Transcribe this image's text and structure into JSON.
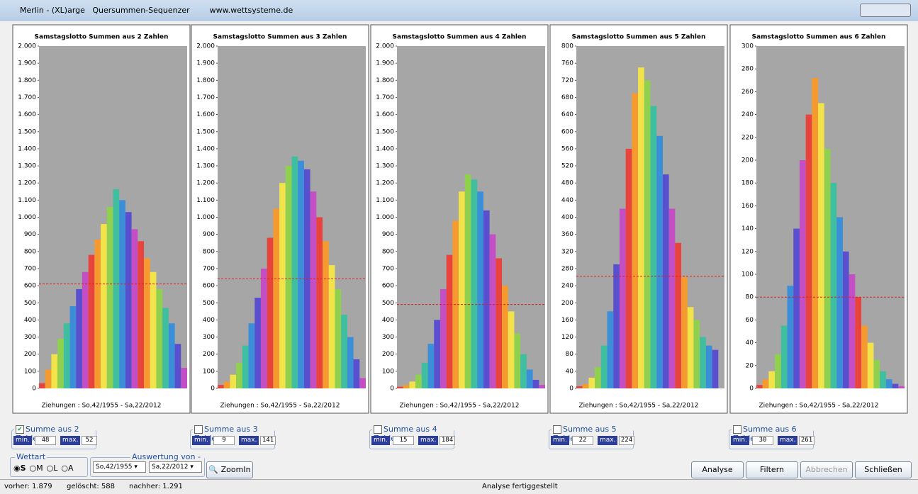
{
  "window": {
    "title": "Merlin - (XL)arge   Quersummen-Sequenzer        www.wettsysteme.de"
  },
  "chart_data": [
    {
      "type": "bar",
      "title": "Samstagslotto Summen aus 2 Zahlen",
      "footer": "Ziehungen : So,42/1955 - Sa,22/2012",
      "values": [
        30,
        110,
        200,
        290,
        380,
        480,
        580,
        680,
        780,
        870,
        960,
        1060,
        1164,
        1100,
        1030,
        930,
        860,
        760,
        680,
        580,
        470,
        380,
        260,
        120
      ],
      "ylim": [
        0,
        2000
      ],
      "yticks": [
        0,
        100,
        200,
        300,
        400,
        500,
        600,
        700,
        800,
        900,
        {
          "value": 1000,
          "label": "1.000"
        },
        {
          "value": 1100,
          "label": "1.100"
        },
        {
          "value": 1200,
          "label": "1.200"
        },
        {
          "value": 1300,
          "label": "1.300"
        },
        {
          "value": 1400,
          "label": "1.400"
        },
        {
          "value": 1500,
          "label": "1.500"
        },
        {
          "value": 1600,
          "label": "1.600"
        },
        {
          "value": 1700,
          "label": "1.700"
        },
        {
          "value": 1800,
          "label": "1.800"
        },
        {
          "value": 1900,
          "label": "1.900"
        },
        {
          "value": 2000,
          "label": "2.000"
        }
      ],
      "reference_line": 610
    },
    {
      "type": "bar",
      "title": "Samstagslotto Summen aus 3 Zahlen",
      "footer": "Ziehungen : So,42/1955 - Sa,22/2012",
      "values": [
        20,
        40,
        80,
        150,
        250,
        380,
        530,
        700,
        880,
        1050,
        1200,
        1300,
        1355,
        1330,
        1280,
        1150,
        1000,
        860,
        720,
        580,
        430,
        300,
        170,
        60
      ],
      "ylim": [
        0,
        2000
      ],
      "yticks": [
        0,
        100,
        200,
        300,
        400,
        500,
        600,
        700,
        800,
        900,
        {
          "value": 1000,
          "label": "1.000"
        },
        {
          "value": 1100,
          "label": "1.100"
        },
        {
          "value": 1200,
          "label": "1.200"
        },
        {
          "value": 1300,
          "label": "1.300"
        },
        {
          "value": 1400,
          "label": "1.400"
        },
        {
          "value": 1500,
          "label": "1.500"
        },
        {
          "value": 1600,
          "label": "1.600"
        },
        {
          "value": 1700,
          "label": "1.700"
        },
        {
          "value": 1800,
          "label": "1.800"
        },
        {
          "value": 1900,
          "label": "1.900"
        },
        {
          "value": 2000,
          "label": "2.000"
        }
      ],
      "reference_line": 640
    },
    {
      "type": "bar",
      "title": "Samstagslotto Summen aus 4 Zahlen",
      "footer": "Ziehungen : So,42/1955 - Sa,22/2012",
      "values": [
        10,
        20,
        40,
        80,
        150,
        260,
        400,
        580,
        780,
        980,
        1150,
        1251,
        1220,
        1150,
        1040,
        900,
        760,
        600,
        450,
        320,
        200,
        110,
        50,
        20
      ],
      "ylim": [
        0,
        2000
      ],
      "yticks": [
        0,
        100,
        200,
        300,
        400,
        500,
        600,
        700,
        800,
        900,
        {
          "value": 1000,
          "label": "1.000"
        },
        {
          "value": 1100,
          "label": "1.100"
        },
        {
          "value": 1200,
          "label": "1.200"
        },
        {
          "value": 1300,
          "label": "1.300"
        },
        {
          "value": 1400,
          "label": "1.400"
        },
        {
          "value": 1500,
          "label": "1.500"
        },
        {
          "value": 1600,
          "label": "1.600"
        },
        {
          "value": 1700,
          "label": "1.700"
        },
        {
          "value": 1800,
          "label": "1.800"
        },
        {
          "value": 1900,
          "label": "1.900"
        },
        {
          "value": 2000,
          "label": "2.000"
        }
      ],
      "reference_line": 490
    },
    {
      "type": "bar",
      "title": "Samstagslotto Summen aus 5 Zahlen",
      "footer": "Ziehungen : So,42/1955 - Sa,22/2012",
      "values": [
        5,
        10,
        25,
        50,
        100,
        180,
        290,
        420,
        560,
        690,
        750,
        720,
        660,
        590,
        500,
        420,
        340,
        260,
        190,
        160,
        120,
        100,
        90,
        0
      ],
      "ylim": [
        0,
        800
      ],
      "yticks": [
        0,
        40,
        80,
        120,
        160,
        200,
        240,
        280,
        320,
        360,
        400,
        440,
        480,
        520,
        560,
        600,
        640,
        680,
        720,
        760,
        800
      ],
      "reference_line": 262
    },
    {
      "type": "bar",
      "title": "Samstagslotto Summen aus 6 Zahlen",
      "footer": "Ziehungen : So,42/1955 - Sa,22/2012",
      "values": [
        3,
        8,
        15,
        30,
        55,
        90,
        140,
        200,
        240,
        272,
        250,
        210,
        180,
        150,
        120,
        100,
        80,
        55,
        40,
        25,
        15,
        8,
        4,
        2
      ],
      "ylim": [
        0,
        300
      ],
      "yticks": [
        0,
        20,
        40,
        60,
        80,
        100,
        120,
        140,
        160,
        180,
        200,
        220,
        240,
        260,
        280,
        300
      ],
      "reference_line": 80
    }
  ],
  "palette": [
    "#e8433c",
    "#f59a2f",
    "#f2e34a",
    "#8fd14f",
    "#3fbf9f",
    "#3a8fd8",
    "#5a4fcf",
    "#c44fc4"
  ],
  "controls": {
    "groups": [
      {
        "label": "Summe aus 2 Zahlen",
        "checked": true,
        "min_label": "min.",
        "min": "48",
        "max_label": "max.",
        "max": "52"
      },
      {
        "label": "Summe aus 3 Zahlen",
        "checked": false,
        "min_label": "min.",
        "min": "9",
        "max_label": "max.",
        "max": "141"
      },
      {
        "label": "Summe aus 4 Zahlen",
        "checked": false,
        "min_label": "min.",
        "min": "15",
        "max_label": "max.",
        "max": "184"
      },
      {
        "label": "Summe aus 5 Zahlen",
        "checked": false,
        "min_label": "min.",
        "min": "22",
        "max_label": "max.",
        "max": "224"
      },
      {
        "label": "Summe aus 6 Zahlen",
        "checked": false,
        "min_label": "min.",
        "min": "30",
        "max_label": "max.",
        "max": "261"
      }
    ],
    "wettart": {
      "title": "Wettart",
      "options": [
        "S",
        "M",
        "L",
        "A"
      ]
    },
    "auswertung": {
      "title": "Auswertung von - bis",
      "from": "So,42/1955",
      "to": "Sa,22/2012"
    },
    "zoom": "ZoomIn",
    "buttons": [
      "Analyse",
      "Filtern",
      "Abbrechen",
      "Schließen"
    ]
  },
  "status": {
    "vorher": "vorher: 1.879",
    "geloescht": "gelöscht: 588",
    "nachher": "nachher: 1.291",
    "message": "Analyse fertiggestellt"
  }
}
